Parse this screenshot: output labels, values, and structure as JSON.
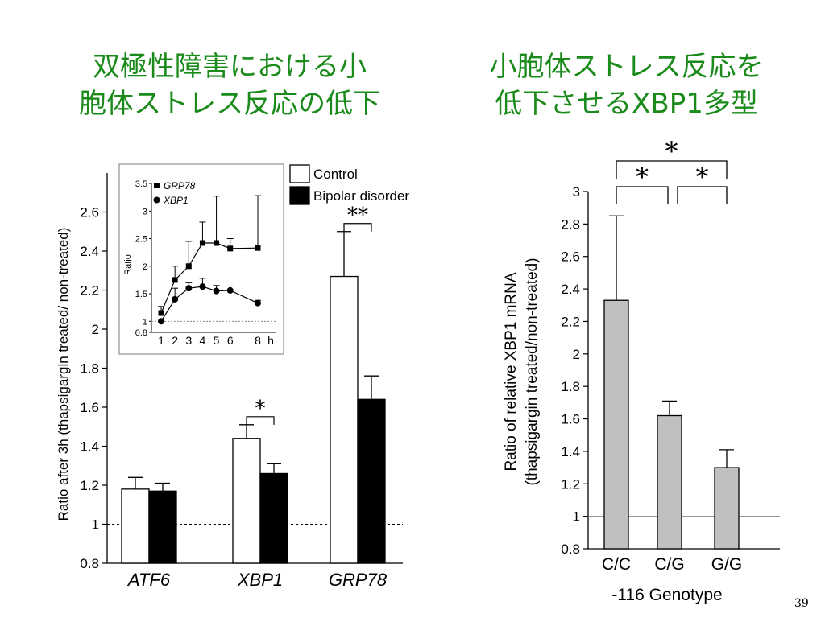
{
  "slide": {
    "title_left_line1": "双極性障害における小",
    "title_left_line2": "胞体ストレス反応の低下",
    "title_right_line1": "小胞体ストレス反応を",
    "title_right_line2": "低下させるXBP1多型",
    "page_number": "39"
  },
  "chart_data": [
    {
      "type": "bar",
      "categories": [
        "ATF6",
        "XBP1",
        "GRP78"
      ],
      "series": [
        {
          "name": "Control",
          "color": "#ffffff",
          "values": [
            1.18,
            1.44,
            2.27
          ],
          "errors": [
            0.06,
            0.07,
            0.23
          ]
        },
        {
          "name": "Bipolar disorder",
          "color": "#000000",
          "values": [
            1.17,
            1.26,
            1.64
          ],
          "errors": [
            0.04,
            0.05,
            0.12
          ]
        }
      ],
      "ylabel": "Ratio after 3h (thapsigargin treated/ non-treated)",
      "ylim": [
        0.8,
        2.8
      ],
      "yticks": [
        "0.8",
        "1",
        "1.2",
        "1.4",
        "1.6",
        "1.8",
        "2",
        "2.2",
        "2.4",
        "2.6"
      ],
      "reference_line": 1,
      "legend_position": "top-right",
      "significance": [
        {
          "category": "XBP1",
          "label": "*"
        },
        {
          "category": "GRP78",
          "label": "**"
        }
      ]
    },
    {
      "type": "line",
      "inset": true,
      "x": [
        1,
        2,
        3,
        4,
        5,
        6,
        8
      ],
      "xticks": [
        "1",
        "2",
        "3",
        "4",
        "5",
        "6",
        "8"
      ],
      "xunit": "h",
      "ylabel": "Ratio",
      "ylim": [
        0.8,
        3.5
      ],
      "yticks": [
        "0.8",
        "1",
        "1.5",
        "2",
        "2.5",
        "3",
        "3.5"
      ],
      "series": [
        {
          "name": "GRP78",
          "marker": "square",
          "values": [
            1.15,
            1.75,
            2.0,
            2.42,
            2.42,
            2.32,
            2.33
          ],
          "errors": [
            0.12,
            0.25,
            0.45,
            0.38,
            0.85,
            0.18,
            0.95
          ]
        },
        {
          "name": "XBP1",
          "marker": "circle",
          "values": [
            1.0,
            1.4,
            1.6,
            1.63,
            1.55,
            1.56,
            1.33
          ],
          "errors": [
            0.0,
            0.2,
            0.1,
            0.15,
            0.1,
            0.08,
            0.05
          ]
        }
      ]
    },
    {
      "type": "bar",
      "categories": [
        "C/C",
        "C/G",
        "G/G"
      ],
      "values": [
        2.33,
        1.62,
        1.3
      ],
      "errors": [
        0.52,
        0.09,
        0.11
      ],
      "color": "#c0c0c0",
      "xlabel": "-116 Genotype",
      "ylabel_line1": "Ratio of relative XBP1 mRNA",
      "ylabel_line2": "(thapsigargin treated/non-treated)",
      "ylim": [
        0.8,
        3.0
      ],
      "yticks": [
        "0.8",
        "1",
        "1.2",
        "1.4",
        "1.6",
        "1.8",
        "2",
        "2.2",
        "2.4",
        "2.6",
        "2.8",
        "3"
      ],
      "reference_line": 1,
      "significance": [
        {
          "pair": [
            "C/C",
            "G/G"
          ],
          "label": "*"
        },
        {
          "pair": [
            "C/C",
            "C/G"
          ],
          "label": "*"
        },
        {
          "pair": [
            "C/G",
            "G/G"
          ],
          "label": "*"
        }
      ]
    }
  ]
}
